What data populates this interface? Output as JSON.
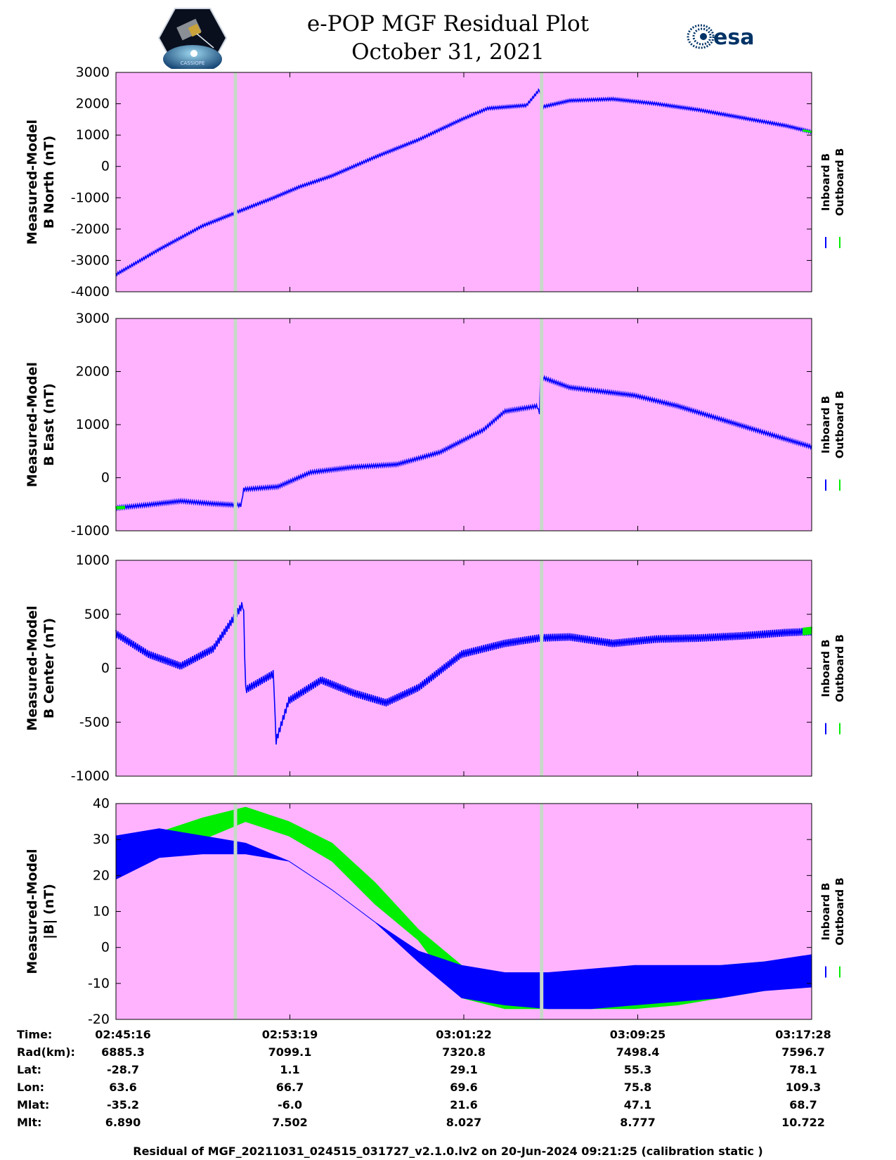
{
  "header": {
    "title_line1": "e-POP MGF Residual Plot",
    "title_line2": "October 31, 2021",
    "left_logo": "cassiope-mission-logo",
    "left_logo_text": "CASSIOPE",
    "right_logo": "esa-logo",
    "right_logo_text": "esa"
  },
  "colors": {
    "plot_background": "#FFB3FF",
    "inboard": "#0000FF",
    "outboard": "#00EE00",
    "gap_marker": "#C8D8C8"
  },
  "legend": {
    "inboard": "Inboard B",
    "outboard": "Outboard B"
  },
  "chart_data": [
    {
      "type": "line",
      "panel": "b-north",
      "ylabel_line1": "Measured-Model",
      "ylabel_line2": "B North (nT)",
      "ylim": [
        -4000,
        3000
      ],
      "yticks": [
        "3000",
        "2000",
        "1000",
        "0",
        "-1000",
        "-2000",
        "-3000",
        "-4000"
      ],
      "xlim": [
        0,
        32.2
      ],
      "gap_markers_min": [
        5.53,
        19.7
      ],
      "series": [
        {
          "name": "Inboard B",
          "x": [
            0,
            2,
            4,
            6,
            7.3,
            8.5,
            10,
            12,
            14,
            16,
            17.2,
            19,
            19.6,
            19.75,
            21,
            23,
            25,
            27,
            29,
            31,
            32.2
          ],
          "values": [
            -3450,
            -2650,
            -1900,
            -1350,
            -1000,
            -650,
            -300,
            300,
            850,
            1500,
            1850,
            1950,
            2450,
            1900,
            2100,
            2150,
            2000,
            1800,
            1550,
            1300,
            1100
          ],
          "noise": 40
        },
        {
          "name": "Outboard B",
          "x": [
            31.8,
            32.2
          ],
          "values": [
            1150,
            1100
          ],
          "noise": 30
        }
      ]
    },
    {
      "type": "line",
      "panel": "b-east",
      "ylabel_line1": "Measured-Model",
      "ylabel_line2": "B East (nT)",
      "ylim": [
        -1000,
        3000
      ],
      "yticks": [
        "3000",
        "2000",
        "1000",
        "0",
        "-1000"
      ],
      "xlim": [
        0,
        32.2
      ],
      "gap_markers_min": [
        5.53,
        19.7
      ],
      "series": [
        {
          "name": "Inboard B",
          "x": [
            0,
            1.5,
            3,
            4.5,
            5.8,
            5.9,
            7.5,
            9,
            11,
            13,
            15,
            17,
            18,
            19.5,
            19.6,
            19.65,
            21,
            24,
            26,
            28,
            30,
            32.2
          ],
          "values": [
            -570,
            -510,
            -440,
            -490,
            -520,
            -220,
            -170,
            100,
            200,
            250,
            480,
            900,
            1250,
            1350,
            1200,
            1900,
            1700,
            1550,
            1350,
            1100,
            850,
            580
          ],
          "noise": 30
        },
        {
          "name": "Outboard B",
          "x": [
            0,
            0.4
          ],
          "values": [
            -570,
            -560
          ],
          "noise": 30
        }
      ]
    },
    {
      "type": "line",
      "panel": "b-center",
      "ylabel_line1": "Measured-Model",
      "ylabel_line2": "B Center (nT)",
      "ylim": [
        -1000,
        1000
      ],
      "yticks": [
        "1000",
        "500",
        "0",
        "-500",
        "-1000"
      ],
      "xlim": [
        0,
        32.2
      ],
      "gap_markers_min": [
        5.53,
        19.7
      ],
      "series": [
        {
          "name": "Inboard B",
          "x": [
            0,
            1.5,
            3,
            4.5,
            5.9,
            6.0,
            7.3,
            7.4,
            8,
            9.5,
            11,
            12.5,
            14,
            16,
            18,
            19.6,
            21,
            23,
            25,
            27,
            29,
            31,
            32.2
          ],
          "values": [
            320,
            130,
            20,
            180,
            600,
            -200,
            -50,
            -680,
            -300,
            -110,
            -230,
            -320,
            -180,
            130,
            230,
            280,
            290,
            230,
            270,
            280,
            300,
            330,
            340
          ],
          "noise": 35
        },
        {
          "name": "Outboard B",
          "x": [
            31.8,
            32.2
          ],
          "values": [
            340,
            350
          ],
          "noise": 35
        }
      ]
    },
    {
      "type": "area",
      "panel": "b-magnitude",
      "ylabel_line1": "Measured-Model",
      "ylabel_line2": "|B| (nT)",
      "ylim": [
        -20,
        40
      ],
      "yticks": [
        "40",
        "30",
        "20",
        "10",
        "0",
        "-10",
        "-20"
      ],
      "xlim": [
        0,
        32.2
      ],
      "gap_markers_min": [
        5.53,
        19.7
      ],
      "series": [
        {
          "name": "Outboard B",
          "x": [
            0,
            2,
            4,
            6,
            8,
            10,
            12,
            14,
            16,
            18,
            20,
            22,
            24,
            26,
            28,
            30,
            32.2
          ],
          "upper": [
            30,
            32,
            36,
            39,
            35,
            29,
            18,
            5,
            -5,
            -8,
            -9,
            -8,
            -6,
            -6,
            -5,
            -4,
            -3
          ],
          "lower": [
            20,
            28,
            30,
            35,
            31,
            24,
            12,
            2,
            -14,
            -17,
            -17,
            -17,
            -17,
            -16,
            -14,
            -12,
            -10
          ]
        },
        {
          "name": "Inboard B",
          "x": [
            0,
            2,
            4,
            6,
            8,
            10,
            12,
            14,
            16,
            18,
            20,
            22,
            24,
            26,
            28,
            30,
            32.2
          ],
          "upper": [
            31,
            33,
            31,
            29,
            24,
            16,
            7,
            -1,
            -5,
            -7,
            -7,
            -6,
            -5,
            -5,
            -5,
            -4,
            -2
          ],
          "lower": [
            19,
            25,
            26,
            26,
            24,
            16,
            7,
            -4,
            -14,
            -16,
            -17,
            -17,
            -16,
            -15,
            -14,
            -12,
            -11
          ]
        }
      ]
    }
  ],
  "ephemeris": {
    "labels": [
      "Time:",
      "Rad(km):",
      "Lat:",
      "Lon:",
      "Mlat:",
      "Mlt:"
    ],
    "columns": [
      [
        "02:45:16",
        "6885.3",
        "-28.7",
        "63.6",
        "-35.2",
        "6.890"
      ],
      [
        "02:53:19",
        "7099.1",
        "1.1",
        "66.7",
        "-6.0",
        "7.502"
      ],
      [
        "03:01:22",
        "7320.8",
        "29.1",
        "69.6",
        "21.6",
        "8.027"
      ],
      [
        "03:09:25",
        "7498.4",
        "55.3",
        "75.8",
        "47.1",
        "8.777"
      ],
      [
        "03:17:28",
        "7596.7",
        "78.1",
        "109.3",
        "68.7",
        "10.722"
      ]
    ]
  },
  "footer": {
    "text": "Residual of MGF_20211031_024515_031727_v2.1.0.lv2 on 20-Jun-2024 09:21:25 (calibration static )"
  }
}
